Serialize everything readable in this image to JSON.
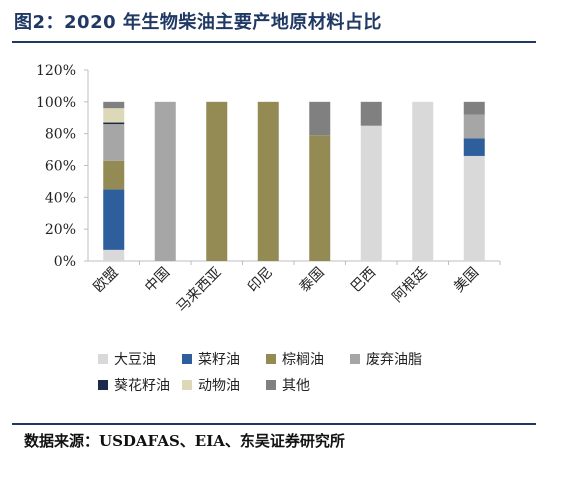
{
  "title": "图2：2020 年生物柴油主要产地原材料占比",
  "source": "数据来源：USDAFAS、EIA、东吴证券研究所",
  "colors": {
    "title": "#1f3864",
    "rule": "#1f3864"
  },
  "chart_data": {
    "type": "bar",
    "stacked": true,
    "categories": [
      "欧盟",
      "中国",
      "马来西亚",
      "印尼",
      "泰国",
      "巴西",
      "阿根廷",
      "美国"
    ],
    "ylim": [
      0,
      120
    ],
    "yticks": [
      0,
      20,
      40,
      60,
      80,
      100,
      120
    ],
    "ytick_labels": [
      "0%",
      "20%",
      "40%",
      "60%",
      "80%",
      "100%",
      "120%"
    ],
    "grid": false,
    "legend_position": "bottom",
    "series": [
      {
        "name": "大豆油",
        "color": "#d9d9d9",
        "values": [
          7,
          0,
          0,
          0,
          0,
          85,
          100,
          66
        ]
      },
      {
        "name": "菜籽油",
        "color": "#2e5e9c",
        "values": [
          38,
          0,
          0,
          0,
          0,
          0,
          0,
          11
        ]
      },
      {
        "name": "棕榈油",
        "color": "#948a54",
        "values": [
          18,
          0,
          100,
          100,
          79,
          0,
          0,
          0
        ]
      },
      {
        "name": "废弃油脂",
        "color": "#a6a6a6",
        "values": [
          23,
          100,
          0,
          0,
          0,
          0,
          0,
          15
        ]
      },
      {
        "name": "葵花籽油",
        "color": "#1b2a4a",
        "values": [
          1,
          0,
          0,
          0,
          0,
          0,
          0,
          0
        ]
      },
      {
        "name": "动物油",
        "color": "#ddd9b8",
        "values": [
          9,
          0,
          0,
          0,
          0,
          0,
          0,
          0
        ]
      },
      {
        "name": "其他",
        "color": "#808080",
        "values": [
          4,
          0,
          0,
          0,
          21,
          15,
          0,
          8
        ]
      }
    ]
  }
}
